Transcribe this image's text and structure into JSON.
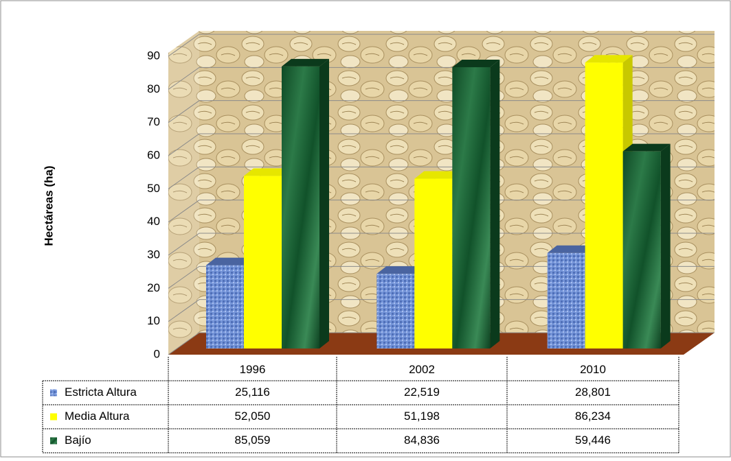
{
  "chart_data": {
    "type": "bar",
    "y_label": "Hectáreas (ha)",
    "categories": [
      "1996",
      "2002",
      "2010"
    ],
    "series": [
      {
        "name": "Estricta Altura",
        "color": "#6f8fd6",
        "values": [
          25.116,
          22.519,
          28.801
        ],
        "value_labels": [
          "25,116",
          "22,519",
          "28,801"
        ]
      },
      {
        "name": "Media Altura",
        "color": "#ffff00",
        "values": [
          52.05,
          51.198,
          86.234
        ],
        "value_labels": [
          "52,050",
          "51,198",
          "86,234"
        ]
      },
      {
        "name": "Bajío",
        "color": "#1e6b3a",
        "values": [
          85.059,
          84.836,
          59.446
        ],
        "value_labels": [
          "85,059",
          "84,836",
          "59,446"
        ]
      }
    ],
    "ylim": [
      0,
      90
    ],
    "yticks": [
      0,
      10,
      20,
      30,
      40,
      50,
      60,
      70,
      80,
      90
    ],
    "grid": true
  }
}
